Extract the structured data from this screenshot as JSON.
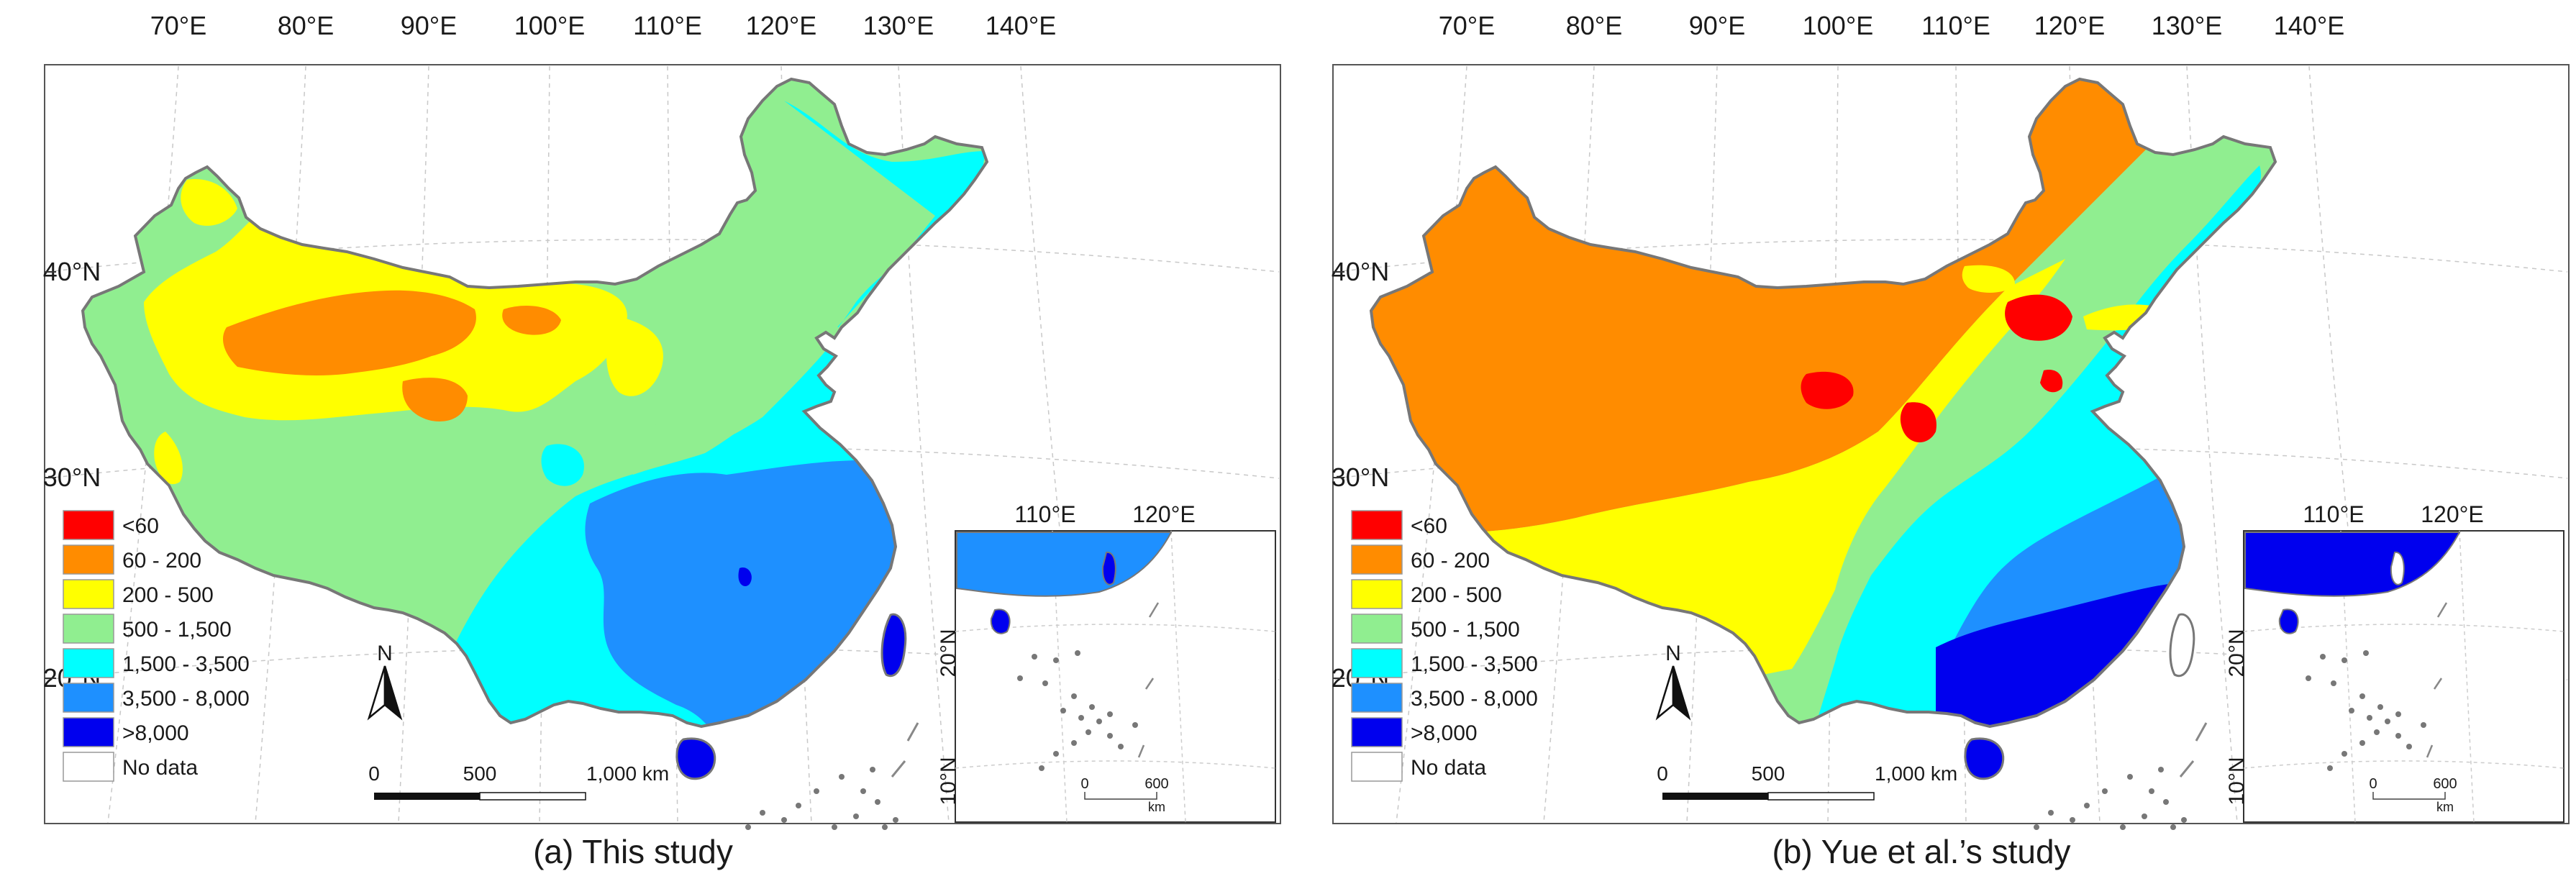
{
  "panels": [
    {
      "caption": "(a) This study",
      "variant": "a",
      "lon_labels": [
        "70°E",
        "80°E",
        "90°E",
        "100°E",
        "110°E",
        "120°E",
        "130°E",
        "140°E"
      ],
      "lat_labels": [
        "40°N",
        "30°N",
        "20°N"
      ],
      "legend": [
        {
          "label": "<60",
          "color": "#ff0000"
        },
        {
          "label": "60 - 200",
          "color": "#ff8c00"
        },
        {
          "label": "200 - 500",
          "color": "#ffff00"
        },
        {
          "label": "500 - 1,500",
          "color": "#90ee90"
        },
        {
          "label": "1,500 - 3,500",
          "color": "#00ffff"
        },
        {
          "label": "3,500 - 8,000",
          "color": "#1e90ff"
        },
        {
          "label": ">8,000",
          "color": "#0000ee"
        },
        {
          "label": "No data",
          "color": "#ffffff"
        }
      ],
      "scale": {
        "zero": "0",
        "mid": "500",
        "end": "1,000 km"
      },
      "north": "N",
      "inset": {
        "lon_labels": [
          "110°E",
          "120°E"
        ],
        "lat_labels": [
          "20°N",
          "10°N"
        ],
        "scale_zero": "0",
        "scale_end": "600",
        "scale_unit": "km"
      }
    },
    {
      "caption": "(b) Yue et al.’s study",
      "variant": "b",
      "lon_labels": [
        "70°E",
        "80°E",
        "90°E",
        "100°E",
        "110°E",
        "120°E",
        "130°E",
        "140°E"
      ],
      "lat_labels": [
        "40°N",
        "30°N",
        "20°N"
      ],
      "legend": [
        {
          "label": "<60",
          "color": "#ff0000"
        },
        {
          "label": "60 - 200",
          "color": "#ff8c00"
        },
        {
          "label": "200 - 500",
          "color": "#ffff00"
        },
        {
          "label": "500 - 1,500",
          "color": "#90ee90"
        },
        {
          "label": "1,500 - 3,500",
          "color": "#00ffff"
        },
        {
          "label": "3,500 - 8,000",
          "color": "#1e90ff"
        },
        {
          "label": ">8,000",
          "color": "#0000ee"
        },
        {
          "label": "No data",
          "color": "#ffffff"
        }
      ],
      "scale": {
        "zero": "0",
        "mid": "500",
        "end": "1,000 km"
      },
      "north": "N",
      "inset": {
        "lon_labels": [
          "110°E",
          "120°E"
        ],
        "lat_labels": [
          "20°N",
          "10°N"
        ],
        "scale_zero": "0",
        "scale_end": "600",
        "scale_unit": "km"
      }
    }
  ]
}
